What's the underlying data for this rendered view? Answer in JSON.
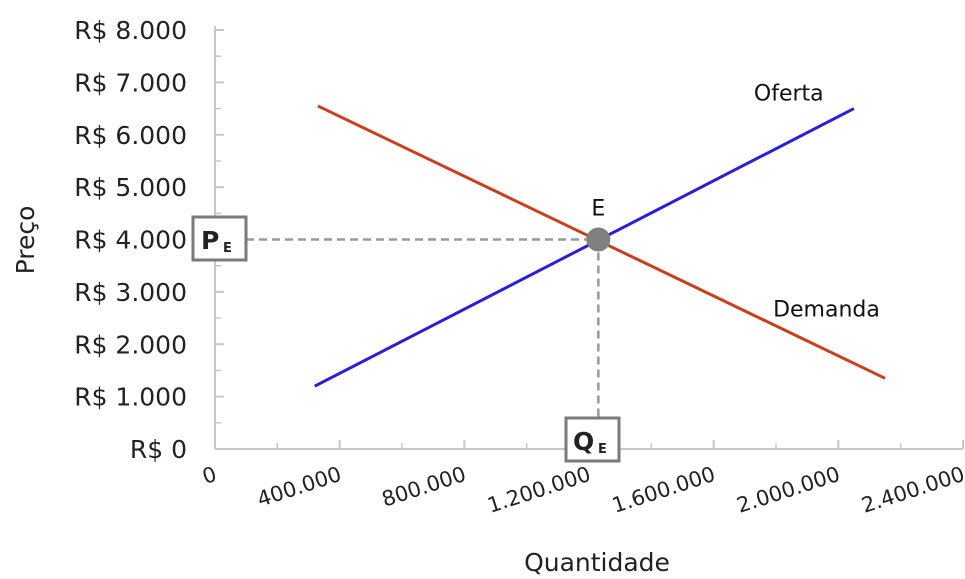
{
  "chart_data": {
    "type": "line",
    "xlabel": "Quantidade",
    "ylabel": "Preço",
    "xlim": [
      0,
      2400000
    ],
    "ylim": [
      0,
      8000
    ],
    "x_tick_values": [
      0,
      400000,
      800000,
      1200000,
      1600000,
      2000000,
      2400000
    ],
    "x_tick_labels": [
      "0",
      "400.000",
      "800.000",
      "1.200.000",
      "1.600.000",
      "2.000.000",
      "2.400.000"
    ],
    "y_tick_values": [
      0,
      1000,
      2000,
      3000,
      4000,
      5000,
      6000,
      7000,
      8000
    ],
    "y_tick_labels": [
      "R$ 0",
      "R$ 1.000",
      "R$ 2.000",
      "R$ 3.000",
      "R$ 4.000",
      "R$ 5.000",
      "R$ 6.000",
      "R$ 7.000",
      "R$ 8.000"
    ],
    "grid": false,
    "series": [
      {
        "name": "Oferta",
        "color": "#2a1fd6",
        "x": [
          320000,
          2050000
        ],
        "y": [
          1200,
          6500
        ]
      },
      {
        "name": "Demanda",
        "color": "#c8401e",
        "x": [
          330000,
          2150000
        ],
        "y": [
          6550,
          1350
        ]
      }
    ],
    "equilibrium": {
      "label": "E",
      "x": 1230000,
      "y": 4000,
      "color": "#808080"
    },
    "price_marker": {
      "main": "P",
      "sub": "E"
    },
    "quantity_marker": {
      "main": "Q",
      "sub": "E"
    }
  }
}
